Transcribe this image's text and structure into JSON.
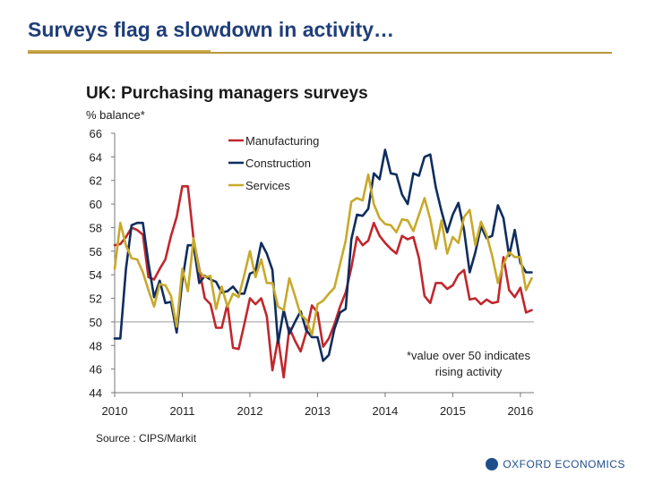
{
  "slide": {
    "title": "Surveys flag a slowdown in activity…",
    "logo": "OXFORD ECONOMICS",
    "colors": {
      "title": "#1f3e79",
      "rule": "#b8973a"
    }
  },
  "chart_data": {
    "type": "line",
    "title": "UK: Purchasing managers surveys",
    "unit": "% balance*",
    "xlim": [
      2010,
      2016.2
    ],
    "ylim": [
      44,
      66
    ],
    "yticks": [
      44,
      46,
      48,
      50,
      52,
      54,
      56,
      58,
      60,
      62,
      64,
      66
    ],
    "xticks": [
      2010,
      2011,
      2012,
      2013,
      2014,
      2015,
      2016
    ],
    "reference_line": 50,
    "grid": false,
    "legend_position": "top-center",
    "note": [
      "*value over 50 indicates",
      "rising activity"
    ],
    "source": "Source : CIPS/Markit",
    "series": [
      {
        "name": "Manufacturing",
        "color": "#c0272d",
        "points": [
          [
            2010.0,
            56.5
          ],
          [
            2010.083,
            56.6
          ],
          [
            2010.167,
            57.2
          ],
          [
            2010.25,
            58.0
          ],
          [
            2010.333,
            57.8
          ],
          [
            2010.417,
            57.4
          ],
          [
            2010.5,
            53.8
          ],
          [
            2010.583,
            53.6
          ],
          [
            2010.667,
            54.5
          ],
          [
            2010.75,
            55.3
          ],
          [
            2010.833,
            57.3
          ],
          [
            2010.917,
            58.9
          ],
          [
            2011.0,
            61.5
          ],
          [
            2011.083,
            61.5
          ],
          [
            2011.167,
            57.0
          ],
          [
            2011.25,
            54.5
          ],
          [
            2011.333,
            52.0
          ],
          [
            2011.417,
            51.5
          ],
          [
            2011.5,
            49.5
          ],
          [
            2011.583,
            49.5
          ],
          [
            2011.667,
            51.5
          ],
          [
            2011.75,
            47.8
          ],
          [
            2011.833,
            47.7
          ],
          [
            2011.917,
            49.8
          ],
          [
            2012.0,
            52.0
          ],
          [
            2012.083,
            51.5
          ],
          [
            2012.167,
            52.0
          ],
          [
            2012.25,
            50.5
          ],
          [
            2012.333,
            45.9
          ],
          [
            2012.417,
            48.6
          ],
          [
            2012.5,
            45.3
          ],
          [
            2012.583,
            49.5
          ],
          [
            2012.667,
            48.4
          ],
          [
            2012.75,
            47.5
          ],
          [
            2012.833,
            49.1
          ],
          [
            2012.917,
            51.4
          ],
          [
            2013.0,
            50.8
          ],
          [
            2013.083,
            47.9
          ],
          [
            2013.167,
            48.6
          ],
          [
            2013.25,
            49.8
          ],
          [
            2013.333,
            51.3
          ],
          [
            2013.417,
            52.5
          ],
          [
            2013.5,
            54.6
          ],
          [
            2013.583,
            57.2
          ],
          [
            2013.667,
            56.5
          ],
          [
            2013.75,
            56.9
          ],
          [
            2013.833,
            58.4
          ],
          [
            2013.917,
            57.3
          ],
          [
            2014.0,
            56.7
          ],
          [
            2014.083,
            56.2
          ],
          [
            2014.167,
            55.8
          ],
          [
            2014.25,
            57.3
          ],
          [
            2014.333,
            57.0
          ],
          [
            2014.417,
            57.2
          ],
          [
            2014.5,
            55.4
          ],
          [
            2014.583,
            52.2
          ],
          [
            2014.667,
            51.6
          ],
          [
            2014.75,
            53.3
          ],
          [
            2014.833,
            53.3
          ],
          [
            2014.917,
            52.8
          ],
          [
            2015.0,
            53.1
          ],
          [
            2015.083,
            54.0
          ],
          [
            2015.167,
            54.4
          ],
          [
            2015.25,
            51.9
          ],
          [
            2015.333,
            52.0
          ],
          [
            2015.417,
            51.5
          ],
          [
            2015.5,
            51.9
          ],
          [
            2015.583,
            51.6
          ],
          [
            2015.667,
            51.7
          ],
          [
            2015.75,
            55.5
          ],
          [
            2015.833,
            52.7
          ],
          [
            2015.917,
            52.1
          ],
          [
            2016.0,
            52.9
          ],
          [
            2016.083,
            50.8
          ],
          [
            2016.167,
            51.0
          ]
        ]
      },
      {
        "name": "Construction",
        "color": "#0f2d5e",
        "points": [
          [
            2010.0,
            48.6
          ],
          [
            2010.083,
            48.6
          ],
          [
            2010.167,
            54.5
          ],
          [
            2010.25,
            58.2
          ],
          [
            2010.333,
            58.4
          ],
          [
            2010.417,
            58.4
          ],
          [
            2010.5,
            55.0
          ],
          [
            2010.583,
            52.1
          ],
          [
            2010.667,
            53.5
          ],
          [
            2010.75,
            51.6
          ],
          [
            2010.833,
            51.7
          ],
          [
            2010.917,
            49.1
          ],
          [
            2011.0,
            53.5
          ],
          [
            2011.083,
            56.5
          ],
          [
            2011.167,
            56.5
          ],
          [
            2011.25,
            53.3
          ],
          [
            2011.333,
            53.9
          ],
          [
            2011.417,
            53.6
          ],
          [
            2011.5,
            53.4
          ],
          [
            2011.583,
            52.5
          ],
          [
            2011.667,
            52.6
          ],
          [
            2011.75,
            53.0
          ],
          [
            2011.833,
            52.4
          ],
          [
            2011.917,
            52.4
          ],
          [
            2012.0,
            54.1
          ],
          [
            2012.083,
            54.3
          ],
          [
            2012.167,
            56.7
          ],
          [
            2012.25,
            55.8
          ],
          [
            2012.333,
            54.4
          ],
          [
            2012.417,
            48.2
          ],
          [
            2012.5,
            51.0
          ],
          [
            2012.583,
            49.0
          ],
          [
            2012.667,
            50.0
          ],
          [
            2012.75,
            50.9
          ],
          [
            2012.833,
            49.3
          ],
          [
            2012.917,
            48.7
          ],
          [
            2013.0,
            48.7
          ],
          [
            2013.083,
            46.7
          ],
          [
            2013.167,
            47.2
          ],
          [
            2013.25,
            49.4
          ],
          [
            2013.333,
            50.8
          ],
          [
            2013.417,
            51.1
          ],
          [
            2013.5,
            57.0
          ],
          [
            2013.583,
            59.1
          ],
          [
            2013.667,
            59.0
          ],
          [
            2013.75,
            59.6
          ],
          [
            2013.833,
            62.6
          ],
          [
            2013.917,
            62.1
          ],
          [
            2014.0,
            64.6
          ],
          [
            2014.083,
            62.6
          ],
          [
            2014.167,
            62.5
          ],
          [
            2014.25,
            60.8
          ],
          [
            2014.333,
            60.0
          ],
          [
            2014.417,
            62.6
          ],
          [
            2014.5,
            62.4
          ],
          [
            2014.583,
            64.0
          ],
          [
            2014.667,
            64.2
          ],
          [
            2014.75,
            61.4
          ],
          [
            2014.833,
            59.4
          ],
          [
            2014.917,
            57.6
          ],
          [
            2015.0,
            59.1
          ],
          [
            2015.083,
            60.1
          ],
          [
            2015.167,
            57.8
          ],
          [
            2015.25,
            54.2
          ],
          [
            2015.333,
            55.9
          ],
          [
            2015.417,
            58.1
          ],
          [
            2015.5,
            57.1
          ],
          [
            2015.583,
            57.3
          ],
          [
            2015.667,
            59.9
          ],
          [
            2015.75,
            58.8
          ],
          [
            2015.833,
            55.6
          ],
          [
            2015.917,
            57.8
          ],
          [
            2016.0,
            55.0
          ],
          [
            2016.083,
            54.2
          ],
          [
            2016.167,
            54.2
          ]
        ]
      },
      {
        "name": "Services",
        "color": "#c8a92b",
        "points": [
          [
            2010.0,
            54.5
          ],
          [
            2010.083,
            58.4
          ],
          [
            2010.167,
            56.5
          ],
          [
            2010.25,
            55.4
          ],
          [
            2010.333,
            55.3
          ],
          [
            2010.417,
            54.2
          ],
          [
            2010.5,
            52.7
          ],
          [
            2010.583,
            51.3
          ],
          [
            2010.667,
            53.2
          ],
          [
            2010.75,
            53.1
          ],
          [
            2010.833,
            52.2
          ],
          [
            2010.917,
            49.6
          ],
          [
            2011.0,
            54.5
          ],
          [
            2011.083,
            52.6
          ],
          [
            2011.167,
            57.1
          ],
          [
            2011.25,
            54.3
          ],
          [
            2011.333,
            53.8
          ],
          [
            2011.417,
            53.9
          ],
          [
            2011.5,
            51.1
          ],
          [
            2011.583,
            53.0
          ],
          [
            2011.667,
            51.3
          ],
          [
            2011.75,
            52.4
          ],
          [
            2011.833,
            52.1
          ],
          [
            2011.917,
            54.0
          ],
          [
            2012.0,
            56.0
          ],
          [
            2012.083,
            53.8
          ],
          [
            2012.167,
            55.3
          ],
          [
            2012.25,
            53.3
          ],
          [
            2012.333,
            53.3
          ],
          [
            2012.417,
            51.3
          ],
          [
            2012.5,
            51.0
          ],
          [
            2012.583,
            53.7
          ],
          [
            2012.667,
            52.2
          ],
          [
            2012.75,
            50.6
          ],
          [
            2012.833,
            50.2
          ],
          [
            2012.917,
            48.9
          ],
          [
            2013.0,
            51.5
          ],
          [
            2013.083,
            51.8
          ],
          [
            2013.167,
            52.4
          ],
          [
            2013.25,
            52.9
          ],
          [
            2013.333,
            54.9
          ],
          [
            2013.417,
            56.9
          ],
          [
            2013.5,
            60.2
          ],
          [
            2013.583,
            60.5
          ],
          [
            2013.667,
            60.3
          ],
          [
            2013.75,
            62.5
          ],
          [
            2013.833,
            60.0
          ],
          [
            2013.917,
            58.8
          ],
          [
            2014.0,
            58.3
          ],
          [
            2014.083,
            58.2
          ],
          [
            2014.167,
            57.6
          ],
          [
            2014.25,
            58.7
          ],
          [
            2014.333,
            58.6
          ],
          [
            2014.417,
            57.7
          ],
          [
            2014.5,
            59.1
          ],
          [
            2014.583,
            60.5
          ],
          [
            2014.667,
            58.7
          ],
          [
            2014.75,
            56.2
          ],
          [
            2014.833,
            58.6
          ],
          [
            2014.917,
            55.8
          ],
          [
            2015.0,
            57.2
          ],
          [
            2015.083,
            56.7
          ],
          [
            2015.167,
            58.9
          ],
          [
            2015.25,
            59.5
          ],
          [
            2015.333,
            56.5
          ],
          [
            2015.417,
            58.5
          ],
          [
            2015.5,
            57.4
          ],
          [
            2015.583,
            55.6
          ],
          [
            2015.667,
            53.3
          ],
          [
            2015.75,
            54.9
          ],
          [
            2015.833,
            55.9
          ],
          [
            2015.917,
            55.5
          ],
          [
            2016.0,
            55.5
          ],
          [
            2016.083,
            52.7
          ],
          [
            2016.167,
            53.7
          ]
        ]
      }
    ]
  }
}
